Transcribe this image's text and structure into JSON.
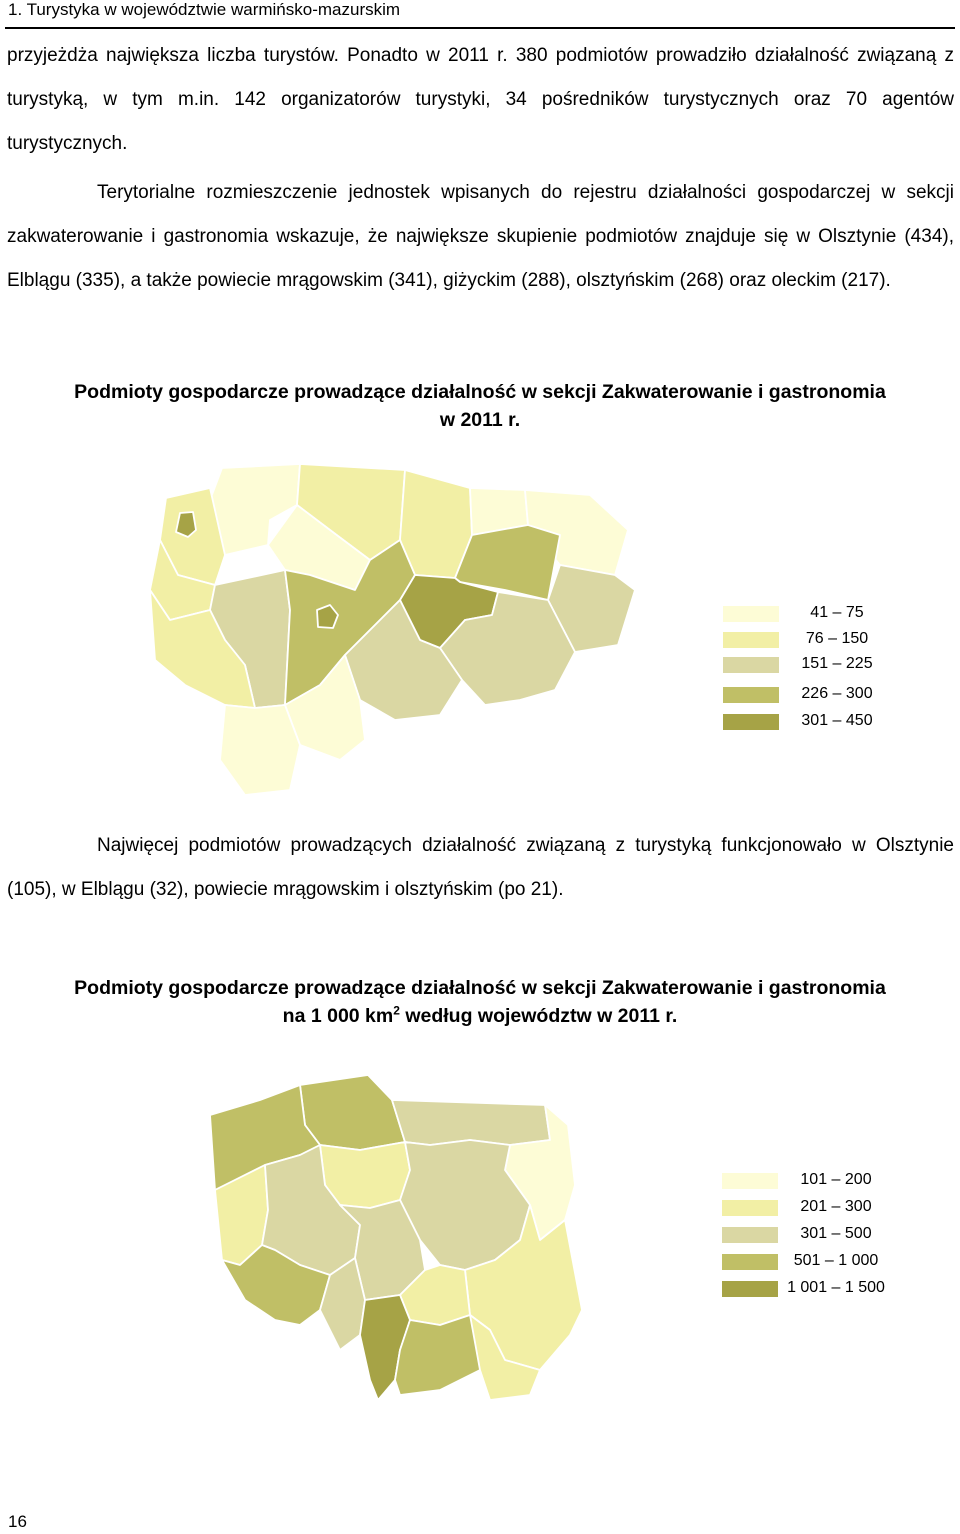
{
  "header": {
    "title": "1. Turystyka w województwie warmińsko-mazurskim"
  },
  "paragraphs": {
    "p1": "przyjeżdża największa liczba turystów. Ponadto w 2011 r. 380 podmiotów prowadziło działalność związaną z turystyką, w tym m.in. 142 organizatorów turystyki, 34 pośredników turystycznych oraz 70 agentów turystycznych.",
    "p2": "Terytorialne rozmieszczenie jednostek wpisanych do rejestru działalności gospodarczej w sekcji zakwaterowanie i gastronomia wskazuje, że największe skupienie podmiotów znajduje się w Olsztynie (434), Elblągu (335), a także powiecie mrągowskim (341), giżyckim (288), olsztyńskim (268) oraz oleckim (217).",
    "p3": "Najwięcej podmiotów prowadzących działalność związaną z turystyką funkcjonowało w Olsztynie (105), w Elblągu (32), powiecie mrągowskim i olsztyńskim (po 21)."
  },
  "map1": {
    "caption_line1": "Podmioty gospodarcze prowadzące działalność w sekcji Zakwaterowanie i gastronomia",
    "caption_line2": "w 2011 r.",
    "legend": [
      {
        "label": "41 – 75",
        "color": "#fdfcd6"
      },
      {
        "label": "76 – 150",
        "color": "#f2efa5"
      },
      {
        "label": "151 – 225",
        "color": "#dad7a3"
      },
      {
        "label": "226 – 300",
        "color": "#c0bf66"
      },
      {
        "label": "301 – 450",
        "color": "#a6a346"
      }
    ]
  },
  "map2": {
    "caption_line1": "Podmioty gospodarcze prowadzące działalność w sekcji Zakwaterowanie i gastronomia",
    "caption_line2_pre": "na 1 000 km",
    "caption_sup": "2",
    "caption_line2_post": " według województw w 2011 r.",
    "legend": [
      {
        "label": "101 – 200",
        "color": "#fdfcd6"
      },
      {
        "label": "201 – 300",
        "color": "#f2efa5"
      },
      {
        "label": "301 – 500",
        "color": "#dad7a3"
      },
      {
        "label": "501 – 1 000",
        "color": "#c0bf66"
      },
      {
        "label": "1 001 – 1 500",
        "color": "#a6a346"
      }
    ]
  },
  "footer": {
    "page_number": "16"
  }
}
